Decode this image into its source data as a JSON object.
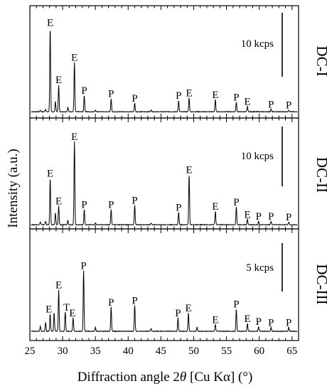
{
  "chart_data": {
    "type": "line",
    "xlabel": "Diffraction angle 2θ [Cu Kα] (°)",
    "xlabel_parts": {
      "pre": "Diffraction angle 2",
      "theta": "θ",
      "post": " [Cu Kα] (°)"
    },
    "ylabel": "Intensity (a.u.)",
    "xlim": [
      25,
      66
    ],
    "x_ticks": [
      25,
      30,
      35,
      40,
      45,
      50,
      55,
      60,
      65
    ],
    "x_tick_labels": [
      "25",
      "30",
      "35",
      "40",
      "45",
      "50",
      "55",
      "60",
      "65"
    ],
    "grid": false,
    "series": [
      {
        "name": "DC-I",
        "scale_bar": "10 kcps",
        "peaks": [
          {
            "x": 26.6,
            "y": 0.02
          },
          {
            "x": 27.4,
            "y": 0.03
          },
          {
            "x": 28.1,
            "y": 0.97
          },
          {
            "x": 28.9,
            "y": 0.12
          },
          {
            "x": 29.4,
            "y": 0.31
          },
          {
            "x": 30.8,
            "y": 0.05
          },
          {
            "x": 31.8,
            "y": 0.57
          },
          {
            "x": 33.3,
            "y": 0.19
          },
          {
            "x": 35.0,
            "y": 0.02
          },
          {
            "x": 37.4,
            "y": 0.15
          },
          {
            "x": 41.0,
            "y": 0.1
          },
          {
            "x": 43.5,
            "y": 0.02
          },
          {
            "x": 47.7,
            "y": 0.13
          },
          {
            "x": 49.3,
            "y": 0.16
          },
          {
            "x": 53.3,
            "y": 0.14
          },
          {
            "x": 56.5,
            "y": 0.11
          },
          {
            "x": 58.2,
            "y": 0.06
          },
          {
            "x": 61.8,
            "y": 0.03
          },
          {
            "x": 64.5,
            "y": 0.02
          }
        ],
        "labels": [
          {
            "x": 28.1,
            "text": "E"
          },
          {
            "x": 29.4,
            "text": "E"
          },
          {
            "x": 31.8,
            "text": "E"
          },
          {
            "x": 33.3,
            "text": "P"
          },
          {
            "x": 37.4,
            "text": "P"
          },
          {
            "x": 41.0,
            "text": "P"
          },
          {
            "x": 47.7,
            "text": "P"
          },
          {
            "x": 49.3,
            "text": "E"
          },
          {
            "x": 53.3,
            "text": "E"
          },
          {
            "x": 56.5,
            "text": "P"
          },
          {
            "x": 58.2,
            "text": "E"
          },
          {
            "x": 61.8,
            "text": "P"
          },
          {
            "x": 64.5,
            "text": "P"
          }
        ]
      },
      {
        "name": "DC-II",
        "scale_bar": "10 kcps",
        "peaks": [
          {
            "x": 26.6,
            "y": 0.03
          },
          {
            "x": 27.4,
            "y": 0.04
          },
          {
            "x": 28.1,
            "y": 0.52
          },
          {
            "x": 28.9,
            "y": 0.13
          },
          {
            "x": 29.4,
            "y": 0.21
          },
          {
            "x": 30.8,
            "y": 0.05
          },
          {
            "x": 31.8,
            "y": 0.93
          },
          {
            "x": 33.3,
            "y": 0.17
          },
          {
            "x": 35.0,
            "y": 0.02
          },
          {
            "x": 37.4,
            "y": 0.17
          },
          {
            "x": 41.0,
            "y": 0.22
          },
          {
            "x": 43.5,
            "y": 0.02
          },
          {
            "x": 47.7,
            "y": 0.14
          },
          {
            "x": 49.3,
            "y": 0.56
          },
          {
            "x": 53.3,
            "y": 0.15
          },
          {
            "x": 56.5,
            "y": 0.2
          },
          {
            "x": 58.2,
            "y": 0.06
          },
          {
            "x": 59.9,
            "y": 0.04
          },
          {
            "x": 61.8,
            "y": 0.04
          },
          {
            "x": 64.5,
            "y": 0.03
          }
        ],
        "labels": [
          {
            "x": 28.1,
            "text": "E"
          },
          {
            "x": 29.4,
            "text": "E"
          },
          {
            "x": 31.8,
            "text": "E"
          },
          {
            "x": 33.3,
            "text": "P"
          },
          {
            "x": 37.4,
            "text": "P"
          },
          {
            "x": 41.0,
            "text": "P"
          },
          {
            "x": 47.7,
            "text": "P"
          },
          {
            "x": 49.3,
            "text": "E"
          },
          {
            "x": 53.3,
            "text": "E"
          },
          {
            "x": 56.5,
            "text": "P"
          },
          {
            "x": 58.2,
            "text": "E"
          },
          {
            "x": 59.9,
            "text": "P"
          },
          {
            "x": 61.8,
            "text": "P"
          },
          {
            "x": 64.5,
            "text": "P"
          }
        ]
      },
      {
        "name": "DC-III",
        "scale_bar": "5 kcps",
        "peaks": [
          {
            "x": 26.6,
            "y": 0.05
          },
          {
            "x": 27.4,
            "y": 0.09
          },
          {
            "x": 28.1,
            "y": 0.18
          },
          {
            "x": 28.7,
            "y": 0.19
          },
          {
            "x": 29.4,
            "y": 0.43
          },
          {
            "x": 30.4,
            "y": 0.2
          },
          {
            "x": 31.6,
            "y": 0.14
          },
          {
            "x": 33.2,
            "y": 0.63
          },
          {
            "x": 35.0,
            "y": 0.04
          },
          {
            "x": 37.4,
            "y": 0.25
          },
          {
            "x": 41.0,
            "y": 0.27
          },
          {
            "x": 43.5,
            "y": 0.03
          },
          {
            "x": 47.6,
            "y": 0.14
          },
          {
            "x": 49.2,
            "y": 0.19
          },
          {
            "x": 50.5,
            "y": 0.04
          },
          {
            "x": 53.3,
            "y": 0.07
          },
          {
            "x": 56.5,
            "y": 0.23
          },
          {
            "x": 58.2,
            "y": 0.08
          },
          {
            "x": 59.9,
            "y": 0.05
          },
          {
            "x": 61.8,
            "y": 0.04
          },
          {
            "x": 64.5,
            "y": 0.04
          }
        ],
        "labels": [
          {
            "x": 27.9,
            "text": "E"
          },
          {
            "x": 29.4,
            "text": "E"
          },
          {
            "x": 30.6,
            "text": "T"
          },
          {
            "x": 31.5,
            "text": "E"
          },
          {
            "x": 33.2,
            "text": "P"
          },
          {
            "x": 37.4,
            "text": "P"
          },
          {
            "x": 41.0,
            "text": "P"
          },
          {
            "x": 47.6,
            "text": "P"
          },
          {
            "x": 49.2,
            "text": "E"
          },
          {
            "x": 53.3,
            "text": "E"
          },
          {
            "x": 56.5,
            "text": "P"
          },
          {
            "x": 58.2,
            "text": "E"
          },
          {
            "x": 59.9,
            "text": "P"
          },
          {
            "x": 61.8,
            "text": "P"
          },
          {
            "x": 64.5,
            "text": "P"
          }
        ]
      }
    ]
  }
}
